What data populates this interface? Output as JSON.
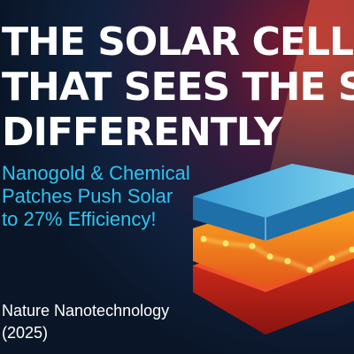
{
  "headline": {
    "lines": [
      "THE SOLAR CELL",
      "THAT SEES THE SUN",
      "DIFFERENTLY"
    ]
  },
  "subheadline": {
    "lines": [
      "Nanogold & Chemical",
      "Patches Push Solar",
      "to 27% Efficiency!"
    ]
  },
  "citation": {
    "lines": [
      "Nature Nanotechnology",
      "(2025)"
    ]
  }
}
